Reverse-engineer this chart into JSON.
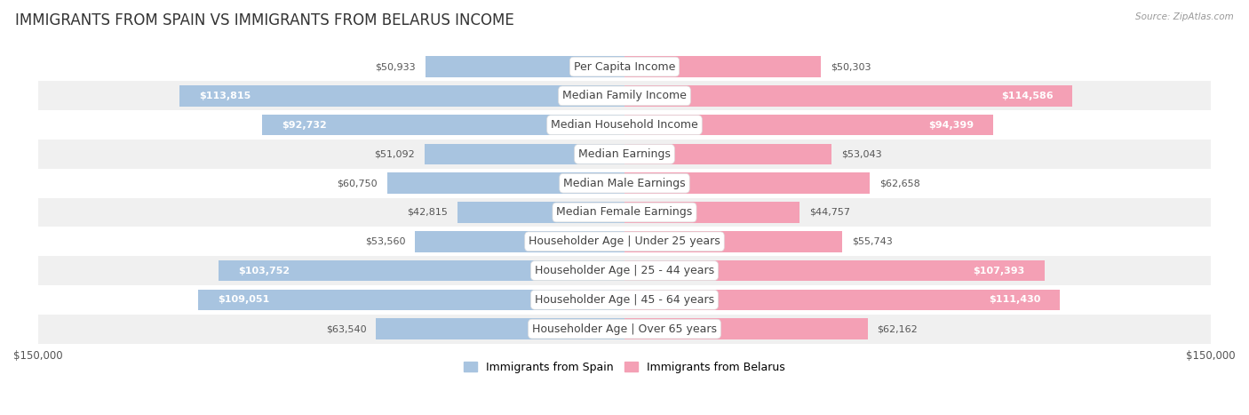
{
  "title": "IMMIGRANTS FROM SPAIN VS IMMIGRANTS FROM BELARUS INCOME",
  "source": "Source: ZipAtlas.com",
  "categories": [
    "Per Capita Income",
    "Median Family Income",
    "Median Household Income",
    "Median Earnings",
    "Median Male Earnings",
    "Median Female Earnings",
    "Householder Age | Under 25 years",
    "Householder Age | 25 - 44 years",
    "Householder Age | 45 - 64 years",
    "Householder Age | Over 65 years"
  ],
  "spain_values": [
    50933,
    113815,
    92732,
    51092,
    60750,
    42815,
    53560,
    103752,
    109051,
    63540
  ],
  "belarus_values": [
    50303,
    114586,
    94399,
    53043,
    62658,
    44757,
    55743,
    107393,
    111430,
    62162
  ],
  "spain_labels": [
    "$50,933",
    "$113,815",
    "$92,732",
    "$51,092",
    "$60,750",
    "$42,815",
    "$53,560",
    "$103,752",
    "$109,051",
    "$63,540"
  ],
  "belarus_labels": [
    "$50,303",
    "$114,586",
    "$94,399",
    "$53,043",
    "$62,658",
    "$44,757",
    "$55,743",
    "$107,393",
    "$111,430",
    "$62,162"
  ],
  "spain_color": "#a8c4e0",
  "belarus_color": "#f4a0b5",
  "max_value": 150000,
  "row_bg_even": "#f0f0f0",
  "row_bg_odd": "#ffffff",
  "label_inside_threshold": 80000,
  "bar_height": 0.72,
  "title_fontsize": 12,
  "label_fontsize": 8,
  "category_fontsize": 9,
  "axis_label_fontsize": 8.5
}
